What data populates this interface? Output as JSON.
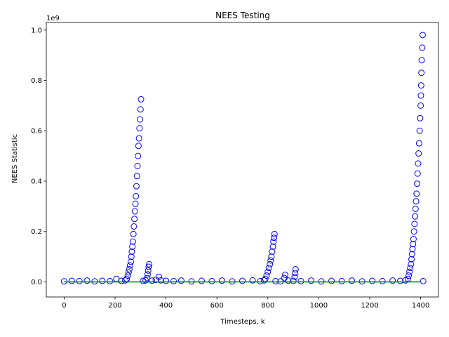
{
  "chart_data": {
    "type": "scatter",
    "title": "NEES Testing",
    "xlabel": "Timesteps, k",
    "ylabel": "NEES Statistic",
    "y_offset_label": "1e9",
    "xlim": [
      -70,
      1470
    ],
    "ylim": [
      -0.06,
      1.03
    ],
    "x_ticks": [
      0,
      200,
      400,
      600,
      800,
      1000,
      1200,
      1400
    ],
    "y_ticks": [
      0.0,
      0.2,
      0.4,
      0.6,
      0.8,
      1.0
    ],
    "y_tick_labels": [
      "0.0",
      "0.2",
      "0.4",
      "0.6",
      "0.8",
      "1.0"
    ],
    "grid": false,
    "marker": "open-circle",
    "colors": {
      "points": "#0000ff",
      "threshold": "#008000"
    },
    "threshold_line": {
      "x": [
        0,
        1400
      ],
      "y": [
        0.0,
        0.0
      ]
    },
    "series": [
      {
        "values_scale": "1e9",
        "points": [
          [
            0,
            0.002
          ],
          [
            30,
            0.004
          ],
          [
            60,
            0.003
          ],
          [
            90,
            0.005
          ],
          [
            120,
            0.002
          ],
          [
            150,
            0.004
          ],
          [
            180,
            0.003
          ],
          [
            205,
            0.012
          ],
          [
            225,
            0.004
          ],
          [
            240,
            0.006
          ],
          [
            246,
            0.012
          ],
          [
            250,
            0.025
          ],
          [
            253,
            0.038
          ],
          [
            256,
            0.05
          ],
          [
            259,
            0.065
          ],
          [
            262,
            0.08
          ],
          [
            264,
            0.1
          ],
          [
            266,
            0.12
          ],
          [
            268,
            0.14
          ],
          [
            270,
            0.16
          ],
          [
            272,
            0.19
          ],
          [
            274,
            0.22
          ],
          [
            276,
            0.25
          ],
          [
            278,
            0.28
          ],
          [
            280,
            0.31
          ],
          [
            282,
            0.34
          ],
          [
            284,
            0.38
          ],
          [
            286,
            0.42
          ],
          [
            288,
            0.46
          ],
          [
            290,
            0.5
          ],
          [
            292,
            0.54
          ],
          [
            294,
            0.57
          ],
          [
            296,
            0.61
          ],
          [
            298,
            0.645
          ],
          [
            300,
            0.685
          ],
          [
            302,
            0.725
          ],
          [
            310,
            0.004
          ],
          [
            320,
            0.006
          ],
          [
            326,
            0.015
          ],
          [
            328,
            0.03
          ],
          [
            330,
            0.045
          ],
          [
            332,
            0.06
          ],
          [
            334,
            0.07
          ],
          [
            345,
            0.005
          ],
          [
            360,
            0.008
          ],
          [
            372,
            0.02
          ],
          [
            380,
            0.006
          ],
          [
            400,
            0.004
          ],
          [
            430,
            0.003
          ],
          [
            460,
            0.005
          ],
          [
            500,
            0.002
          ],
          [
            540,
            0.004
          ],
          [
            580,
            0.003
          ],
          [
            620,
            0.005
          ],
          [
            660,
            0.002
          ],
          [
            700,
            0.004
          ],
          [
            740,
            0.006
          ],
          [
            770,
            0.003
          ],
          [
            785,
            0.006
          ],
          [
            790,
            0.012
          ],
          [
            795,
            0.025
          ],
          [
            800,
            0.04
          ],
          [
            804,
            0.055
          ],
          [
            808,
            0.07
          ],
          [
            811,
            0.085
          ],
          [
            814,
            0.1
          ],
          [
            817,
            0.12
          ],
          [
            820,
            0.14
          ],
          [
            822,
            0.16
          ],
          [
            824,
            0.175
          ],
          [
            826,
            0.19
          ],
          [
            830,
            0.003
          ],
          [
            850,
            0.002
          ],
          [
            865,
            0.015
          ],
          [
            868,
            0.028
          ],
          [
            880,
            0.005
          ],
          [
            900,
            0.004
          ],
          [
            905,
            0.02
          ],
          [
            907,
            0.035
          ],
          [
            909,
            0.05
          ],
          [
            930,
            0.003
          ],
          [
            970,
            0.005
          ],
          [
            1010,
            0.002
          ],
          [
            1050,
            0.004
          ],
          [
            1090,
            0.003
          ],
          [
            1130,
            0.005
          ],
          [
            1170,
            0.002
          ],
          [
            1210,
            0.004
          ],
          [
            1250,
            0.003
          ],
          [
            1290,
            0.005
          ],
          [
            1320,
            0.004
          ],
          [
            1340,
            0.006
          ],
          [
            1350,
            0.012
          ],
          [
            1353,
            0.025
          ],
          [
            1356,
            0.04
          ],
          [
            1359,
            0.055
          ],
          [
            1362,
            0.07
          ],
          [
            1364,
            0.09
          ],
          [
            1366,
            0.11
          ],
          [
            1368,
            0.13
          ],
          [
            1370,
            0.15
          ],
          [
            1372,
            0.17
          ],
          [
            1374,
            0.2
          ],
          [
            1376,
            0.23
          ],
          [
            1378,
            0.26
          ],
          [
            1380,
            0.29
          ],
          [
            1382,
            0.32
          ],
          [
            1384,
            0.35
          ],
          [
            1386,
            0.39
          ],
          [
            1388,
            0.43
          ],
          [
            1390,
            0.47
          ],
          [
            1392,
            0.51
          ],
          [
            1394,
            0.55
          ],
          [
            1396,
            0.6
          ],
          [
            1398,
            0.65
          ],
          [
            1400,
            0.7
          ],
          [
            1401,
            0.74
          ],
          [
            1402,
            0.78
          ],
          [
            1403,
            0.83
          ],
          [
            1404,
            0.88
          ],
          [
            1406,
            0.93
          ],
          [
            1408,
            0.98
          ],
          [
            1410,
            0.003
          ]
        ]
      }
    ]
  }
}
